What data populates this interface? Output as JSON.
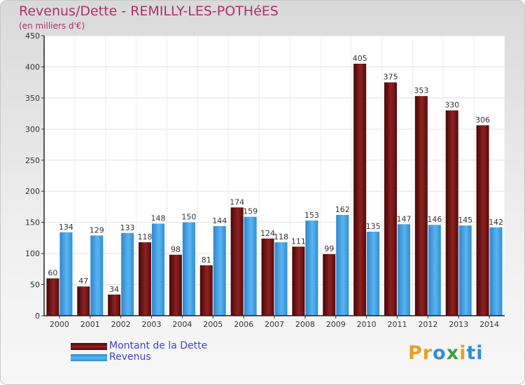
{
  "title": "Revenus/Dette - REMILLY-LES-POTHéES",
  "subtitle": "(en milliers d'€)",
  "colors": {
    "dette": "#6b0a0a",
    "revenus": "#2e8fd4",
    "title": "#b03068",
    "legend_text": "#4040d8"
  },
  "logo": {
    "text": "Proxiti",
    "letters": [
      "P",
      "r",
      "o",
      "x",
      "i",
      "t",
      "i"
    ],
    "colors": [
      "#e8a020",
      "#e8a020",
      "#2e8fd4",
      "#3aa040",
      "#e8a020",
      "#2e8fd4",
      "#2e8fd4"
    ]
  },
  "chart_data": {
    "type": "bar",
    "title": "Revenus/Dette - REMILLY-LES-POTHéES",
    "subtitle": "(en milliers d'€)",
    "categories": [
      "2000",
      "2001",
      "2002",
      "2003",
      "2004",
      "2005",
      "2006",
      "2007",
      "2008",
      "2009",
      "2010",
      "2011",
      "2012",
      "2013",
      "2014"
    ],
    "series": [
      {
        "name": "Montant de la Dette",
        "values": [
          60,
          47,
          34,
          118,
          98,
          81,
          174,
          124,
          111,
          99,
          405,
          375,
          353,
          330,
          306
        ]
      },
      {
        "name": "Revenus",
        "values": [
          134,
          129,
          133,
          148,
          150,
          144,
          159,
          118,
          153,
          162,
          135,
          147,
          146,
          145,
          142
        ]
      }
    ],
    "ylim": [
      0,
      450
    ],
    "yticks": [
      0,
      50,
      100,
      150,
      200,
      250,
      300,
      350,
      400,
      450
    ],
    "grid": true,
    "legend_position": "bottom-left"
  }
}
